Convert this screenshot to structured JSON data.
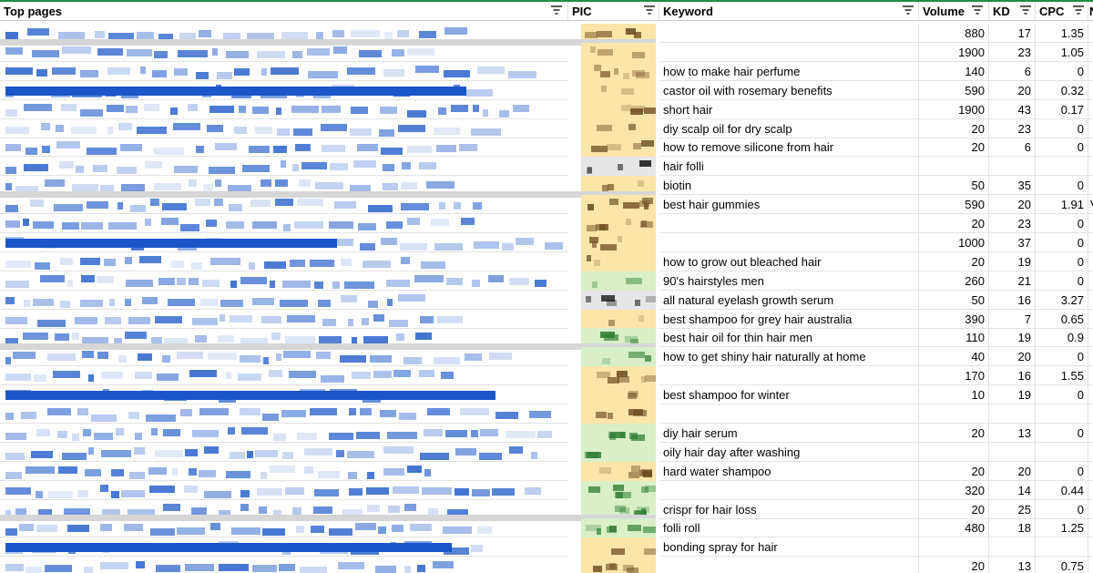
{
  "header": {
    "top_pages": "Top pages",
    "pic": "PIC",
    "keyword": "Keyword",
    "volume": "Volume",
    "kd": "KD",
    "cpc": "CPC",
    "more": "N"
  },
  "colors": {
    "link_blue": "#1a56c8",
    "pic_yellow": "#fbe6a8",
    "pic_green": "#d8efc8",
    "pic_gray": "#e6e6e6",
    "frozen_border": "#1e8e3e"
  },
  "rows": [
    {
      "keyword": "",
      "volume": "880",
      "kd": "17",
      "cpc": "1.35",
      "more": "",
      "pic": "yellow"
    },
    {
      "keyword": "",
      "volume": "1900",
      "kd": "23",
      "cpc": "1.05",
      "more": "",
      "pic": "yellow"
    },
    {
      "keyword": "how to make hair perfume",
      "volume": "140",
      "kd": "6",
      "cpc": "0",
      "more": "",
      "pic": "yellow"
    },
    {
      "keyword": "castor oil with rosemary benefits",
      "volume": "590",
      "kd": "20",
      "cpc": "0.32",
      "more": "",
      "pic": "yellow"
    },
    {
      "keyword": "short hair",
      "volume": "1900",
      "kd": "43",
      "cpc": "0.17",
      "more": "",
      "pic": "yellow"
    },
    {
      "keyword": "diy scalp oil for dry scalp",
      "volume": "20",
      "kd": "23",
      "cpc": "0",
      "more": "",
      "pic": "yellow"
    },
    {
      "keyword": "how to remove silicone from hair",
      "volume": "20",
      "kd": "6",
      "cpc": "0",
      "more": "",
      "pic": "yellow"
    },
    {
      "keyword": "hair folli",
      "volume": "",
      "kd": "",
      "cpc": "",
      "more": "",
      "pic": "gray"
    },
    {
      "keyword": "biotin",
      "volume": "50",
      "kd": "35",
      "cpc": "0",
      "more": "",
      "pic": "yellow"
    },
    {
      "keyword": "best hair gummies",
      "volume": "590",
      "kd": "20",
      "cpc": "1.91",
      "more": "V",
      "pic": "yellow"
    },
    {
      "keyword": "",
      "volume": "20",
      "kd": "23",
      "cpc": "0",
      "more": "",
      "pic": "yellow"
    },
    {
      "keyword": "",
      "volume": "1000",
      "kd": "37",
      "cpc": "0",
      "more": "",
      "pic": "yellow"
    },
    {
      "keyword": "how to grow out bleached hair",
      "volume": "20",
      "kd": "19",
      "cpc": "0",
      "more": "",
      "pic": "yellow"
    },
    {
      "keyword": "90's hairstyles men",
      "volume": "260",
      "kd": "21",
      "cpc": "0",
      "more": "",
      "pic": "green"
    },
    {
      "keyword": "all natural eyelash growth serum",
      "volume": "50",
      "kd": "16",
      "cpc": "3.27",
      "more": "",
      "pic": "gray"
    },
    {
      "keyword": "best shampoo for grey hair australia",
      "volume": "390",
      "kd": "7",
      "cpc": "0.65",
      "more": "",
      "pic": "yellow"
    },
    {
      "keyword": "best hair oil for thin hair men",
      "volume": "110",
      "kd": "19",
      "cpc": "0.9",
      "more": "",
      "pic": "green"
    },
    {
      "keyword": "how to get shiny hair naturally at home",
      "volume": "40",
      "kd": "20",
      "cpc": "0",
      "more": "",
      "pic": "green"
    },
    {
      "keyword": "",
      "volume": "170",
      "kd": "16",
      "cpc": "1.55",
      "more": "",
      "pic": "yellow"
    },
    {
      "keyword": "best shampoo for winter",
      "volume": "10",
      "kd": "19",
      "cpc": "0",
      "more": "",
      "pic": "yellow"
    },
    {
      "keyword": "",
      "volume": "",
      "kd": "",
      "cpc": "",
      "more": "",
      "pic": "yellow"
    },
    {
      "keyword": "diy hair serum",
      "volume": "20",
      "kd": "13",
      "cpc": "0",
      "more": "",
      "pic": "green"
    },
    {
      "keyword": "oily hair day after washing",
      "volume": "",
      "kd": "",
      "cpc": "",
      "more": "",
      "pic": "green"
    },
    {
      "keyword": "hard water shampoo",
      "volume": "20",
      "kd": "20",
      "cpc": "0",
      "more": "",
      "pic": "yellow"
    },
    {
      "keyword": "",
      "volume": "320",
      "kd": "14",
      "cpc": "0.44",
      "more": "",
      "pic": "green"
    },
    {
      "keyword": "crispr for hair loss",
      "volume": "20",
      "kd": "25",
      "cpc": "0",
      "more": "",
      "pic": "green"
    },
    {
      "keyword": "folli roll",
      "volume": "480",
      "kd": "18",
      "cpc": "1.25",
      "more": "",
      "pic": "green"
    },
    {
      "keyword": "bonding spray for hair",
      "volume": "",
      "kd": "",
      "cpc": "",
      "more": "",
      "pic": "yellow"
    },
    {
      "keyword": "",
      "volume": "20",
      "kd": "13",
      "cpc": "0.75",
      "more": "",
      "pic": "yellow"
    }
  ]
}
